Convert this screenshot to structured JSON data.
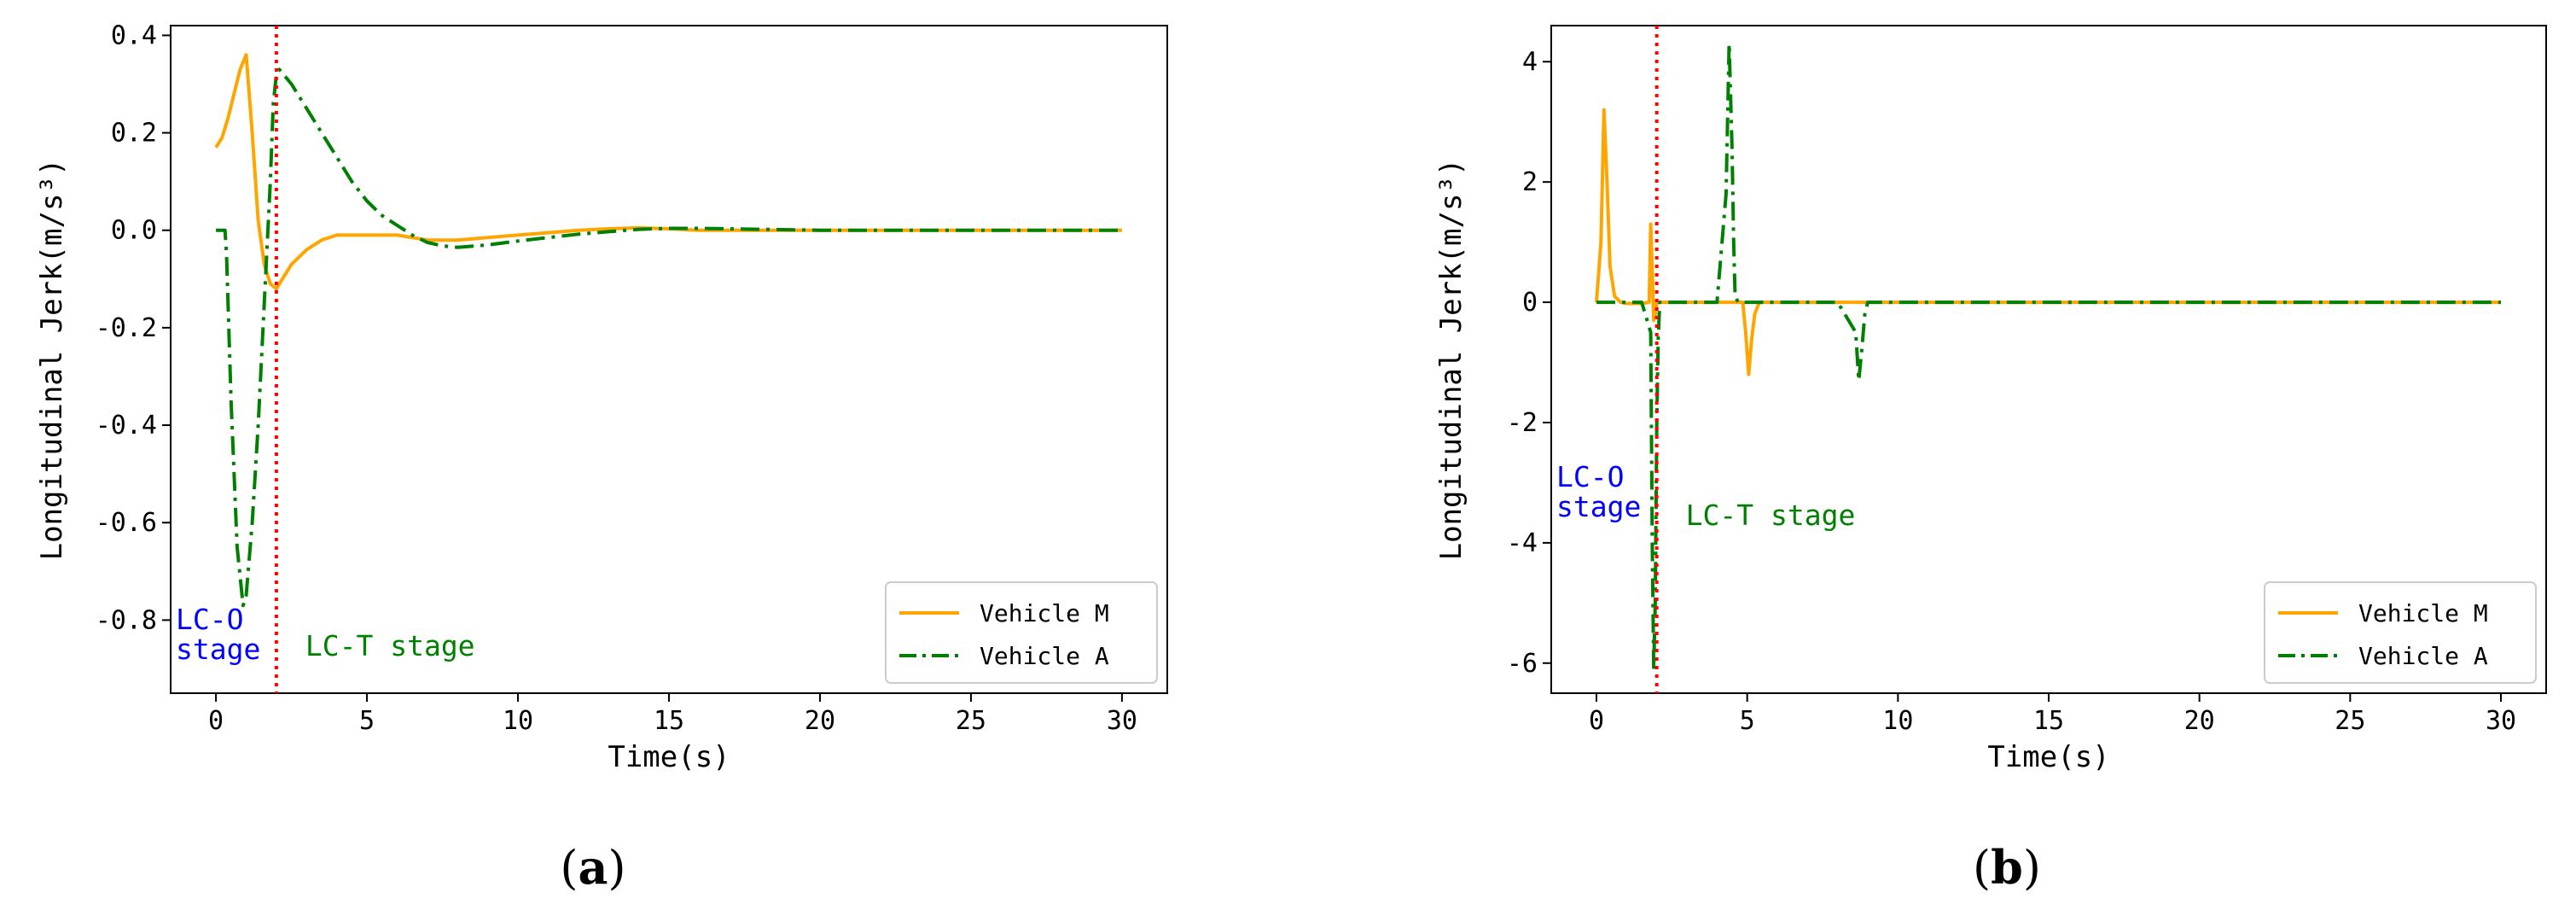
{
  "colors": {
    "vehicle_m": "#FFA500",
    "vehicle_a": "#008000",
    "divider": "#FF0000",
    "lc_o": "#0000FF",
    "lc_t": "#008000"
  },
  "chart_data": [
    {
      "panel": "a",
      "type": "line",
      "xlabel": "Time(s)",
      "ylabel": "Longitudinal Jerk(m/s³)",
      "xlim": [
        -1.5,
        31.5
      ],
      "ylim": [
        -0.95,
        0.42
      ],
      "xticks": [
        0,
        5,
        10,
        15,
        20,
        25,
        30
      ],
      "xtick_labels": [
        "0",
        "5",
        "10",
        "15",
        "20",
        "25",
        "30"
      ],
      "yticks": [
        -0.8,
        -0.6,
        -0.4,
        -0.2,
        0.0,
        0.2,
        0.4
      ],
      "ytick_labels": [
        "-0.8",
        "-0.6",
        "-0.4",
        "-0.2",
        "0.0",
        "0.2",
        "0.4"
      ],
      "divider_x": 2.0,
      "legend_position": "lower-right",
      "annotations": {
        "lc_o_line1": "LC-O",
        "lc_o_line2": "stage",
        "lc_t": "LC-T stage"
      },
      "series": [
        {
          "name": "Vehicle M",
          "style": "solid",
          "x": [
            0,
            0.2,
            0.4,
            0.6,
            0.8,
            1.0,
            1.2,
            1.4,
            1.6,
            1.8,
            2.0,
            2.2,
            2.5,
            3.0,
            3.5,
            4.0,
            5.0,
            6.0,
            7.0,
            8.0,
            9.0,
            10.0,
            11.0,
            12.0,
            13.0,
            14.0,
            15.0,
            16.0,
            17.0,
            18.0,
            20.0,
            25.0,
            30.0
          ],
          "y": [
            0.17,
            0.19,
            0.23,
            0.28,
            0.33,
            0.36,
            0.2,
            0.02,
            -0.07,
            -0.11,
            -0.12,
            -0.1,
            -0.07,
            -0.04,
            -0.02,
            -0.01,
            -0.01,
            -0.01,
            -0.02,
            -0.02,
            -0.015,
            -0.01,
            -0.005,
            0.0,
            0.003,
            0.005,
            0.003,
            0.0,
            0.0,
            0.0,
            0.0,
            0.0,
            0.0
          ]
        },
        {
          "name": "Vehicle A",
          "style": "dashdot",
          "x": [
            0,
            0.3,
            0.35,
            0.5,
            0.7,
            0.9,
            1.0,
            1.2,
            1.4,
            1.6,
            1.8,
            1.9,
            2.0,
            2.1,
            2.5,
            3.0,
            3.5,
            4.0,
            4.5,
            5.0,
            5.5,
            6.0,
            6.5,
            7.0,
            7.5,
            8.0,
            9.0,
            10.0,
            11.0,
            12.0,
            13.0,
            14.0,
            15.0,
            16.0,
            17.0,
            18.0,
            20.0,
            25.0,
            30.0
          ],
          "y": [
            0.0,
            0.0,
            -0.05,
            -0.35,
            -0.65,
            -0.77,
            -0.75,
            -0.6,
            -0.4,
            -0.15,
            0.1,
            0.26,
            0.32,
            0.33,
            0.3,
            0.25,
            0.2,
            0.15,
            0.1,
            0.06,
            0.03,
            0.01,
            -0.01,
            -0.025,
            -0.032,
            -0.035,
            -0.03,
            -0.022,
            -0.015,
            -0.008,
            -0.003,
            0.002,
            0.004,
            0.004,
            0.003,
            0.002,
            0.0,
            0.0,
            0.0
          ]
        }
      ]
    },
    {
      "panel": "b",
      "type": "line",
      "xlabel": "Time(s)",
      "ylabel": "Longitudinal Jerk(m/s³)",
      "xlim": [
        -1.5,
        31.5
      ],
      "ylim": [
        -6.5,
        4.6
      ],
      "xticks": [
        0,
        5,
        10,
        15,
        20,
        25,
        30
      ],
      "xtick_labels": [
        "0",
        "5",
        "10",
        "15",
        "20",
        "25",
        "30"
      ],
      "yticks": [
        -6,
        -4,
        -2,
        0,
        2,
        4
      ],
      "ytick_labels": [
        "-6",
        "-4",
        "-2",
        "0",
        "2",
        "4"
      ],
      "divider_x": 2.0,
      "legend_position": "lower-right",
      "annotations": {
        "lc_o_line1": "LC-O",
        "lc_o_line2": "stage",
        "lc_t": "LC-T stage"
      },
      "series": [
        {
          "name": "Vehicle M",
          "style": "solid",
          "x": [
            0,
            0.15,
            0.25,
            0.35,
            0.45,
            0.6,
            0.8,
            1.0,
            1.5,
            1.75,
            1.8,
            1.85,
            1.9,
            1.95,
            2.0,
            2.1,
            2.5,
            3.0,
            4.0,
            4.85,
            4.95,
            5.05,
            5.15,
            5.25,
            5.4,
            6.0,
            8.0,
            10.0,
            15.0,
            20.0,
            25.0,
            30.0
          ],
          "y": [
            0.0,
            1.0,
            3.2,
            2.0,
            0.6,
            0.1,
            0.0,
            -0.02,
            -0.02,
            0.0,
            1.3,
            0.5,
            -0.3,
            -0.2,
            0.0,
            0.0,
            0.0,
            0.0,
            0.0,
            0.0,
            -0.5,
            -1.2,
            -0.6,
            -0.2,
            0.0,
            0.0,
            0.0,
            0.0,
            0.0,
            0.0,
            0.0,
            0.0
          ]
        },
        {
          "name": "Vehicle A",
          "style": "dashdot",
          "x": [
            0,
            1.5,
            1.8,
            1.85,
            1.9,
            1.95,
            2.0,
            2.05,
            2.1,
            2.2,
            2.5,
            3.0,
            4.0,
            4.3,
            4.4,
            4.5,
            4.55,
            4.6,
            4.7,
            5.0,
            8.0,
            8.6,
            8.7,
            8.8,
            8.9,
            9.0,
            10.0,
            15.0,
            20.0,
            25.0,
            30.0
          ],
          "y": [
            0.0,
            0.0,
            -0.5,
            -4.0,
            -6.1,
            -5.0,
            -2.0,
            -0.6,
            0.0,
            0.0,
            0.0,
            0.0,
            0.0,
            1.8,
            4.3,
            2.5,
            1.0,
            0.1,
            0.0,
            0.0,
            0.0,
            -0.5,
            -1.3,
            -0.8,
            -0.2,
            0.0,
            0.0,
            0.0,
            0.0,
            0.0,
            0.0
          ]
        }
      ]
    }
  ]
}
